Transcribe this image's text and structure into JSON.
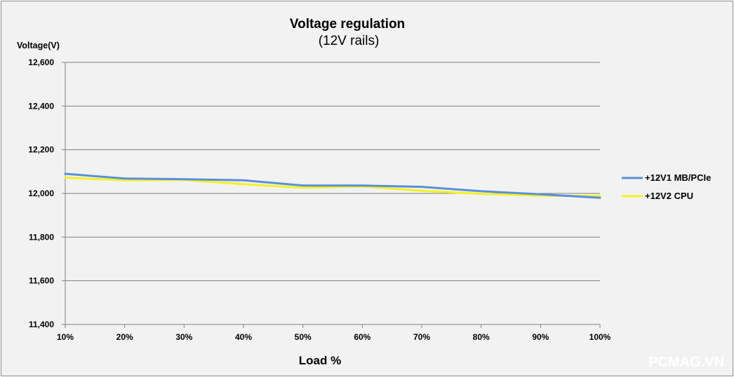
{
  "chart_data": {
    "type": "line",
    "title": "Voltage regulation",
    "subtitle": "(12V rails)",
    "ylabel": "Voltage(V)",
    "xlabel": "Load %",
    "x": [
      "10%",
      "20%",
      "30%",
      "40%",
      "50%",
      "60%",
      "70%",
      "80%",
      "90%",
      "100%"
    ],
    "ylim": [
      11400,
      12600
    ],
    "yticks": [
      11400,
      11600,
      11800,
      12000,
      12200,
      12400,
      12600
    ],
    "ytick_labels": [
      "11,400",
      "11,600",
      "11,800",
      "12,000",
      "12,200",
      "12,400",
      "12,600"
    ],
    "grid": true,
    "legend_position": "right",
    "series": [
      {
        "name": "+12V1 MB/PCIe",
        "color": "#5b8fd6",
        "values": [
          12090,
          12068,
          12065,
          12060,
          12036,
          12036,
          12030,
          12010,
          11996,
          11980
        ]
      },
      {
        "name": "+12V2 CPU",
        "color": "#f2f224",
        "values": [
          12072,
          12060,
          12062,
          12042,
          12026,
          12032,
          12012,
          11998,
          11990,
          11988
        ]
      }
    ]
  },
  "watermark": "PCMAG.VN"
}
